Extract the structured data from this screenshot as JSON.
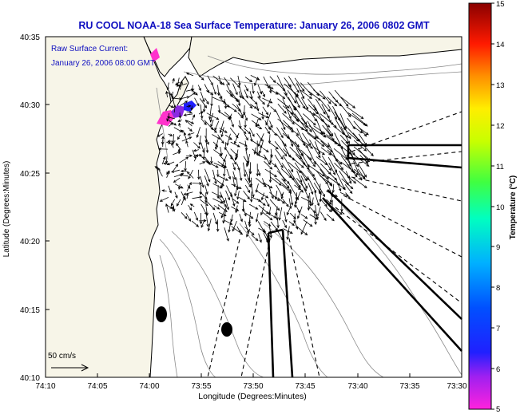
{
  "title": "RU COOL  NOAA-18  Sea Surface Temperature:  January 26, 2006 0802 GMT",
  "annotation": {
    "line1": "Raw Surface Current:",
    "line2": "January 26, 2006 08:00 GMT"
  },
  "x_axis": {
    "label": "Longitude (Degrees:Minutes)",
    "ticks": [
      "74:10",
      "74:05",
      "74:00",
      "73:55",
      "73:50",
      "73:45",
      "73:40",
      "73:35",
      "73:30"
    ]
  },
  "y_axis": {
    "label": "Latitude (Degrees:Minutes)",
    "ticks": [
      "40:35",
      "40:30",
      "40:25",
      "40:20",
      "40:15",
      "40:10"
    ]
  },
  "scale_arrow": {
    "label": "50 cm/s"
  },
  "colorbar": {
    "label": "Temperature (°C)",
    "ticks": [
      "15",
      "14",
      "13",
      "12",
      "11",
      "10",
      "9",
      "8",
      "7",
      "6",
      "5"
    ],
    "min": 5,
    "max": 15
  },
  "colors": {
    "title": "#1010c0",
    "land": "#f7f5e8",
    "ocean": "#ffffff",
    "arrows": "#000000"
  },
  "chart_data": {
    "type": "map",
    "lon_range": [
      "74:10",
      "73:30"
    ],
    "lat_range": [
      "40:10",
      "40:35"
    ],
    "colorbar_range_c": [
      5,
      15
    ],
    "vector_field": "surface current vectors over the New York Bight apex",
    "sst_patches_c": [
      5,
      6,
      7
    ]
  }
}
